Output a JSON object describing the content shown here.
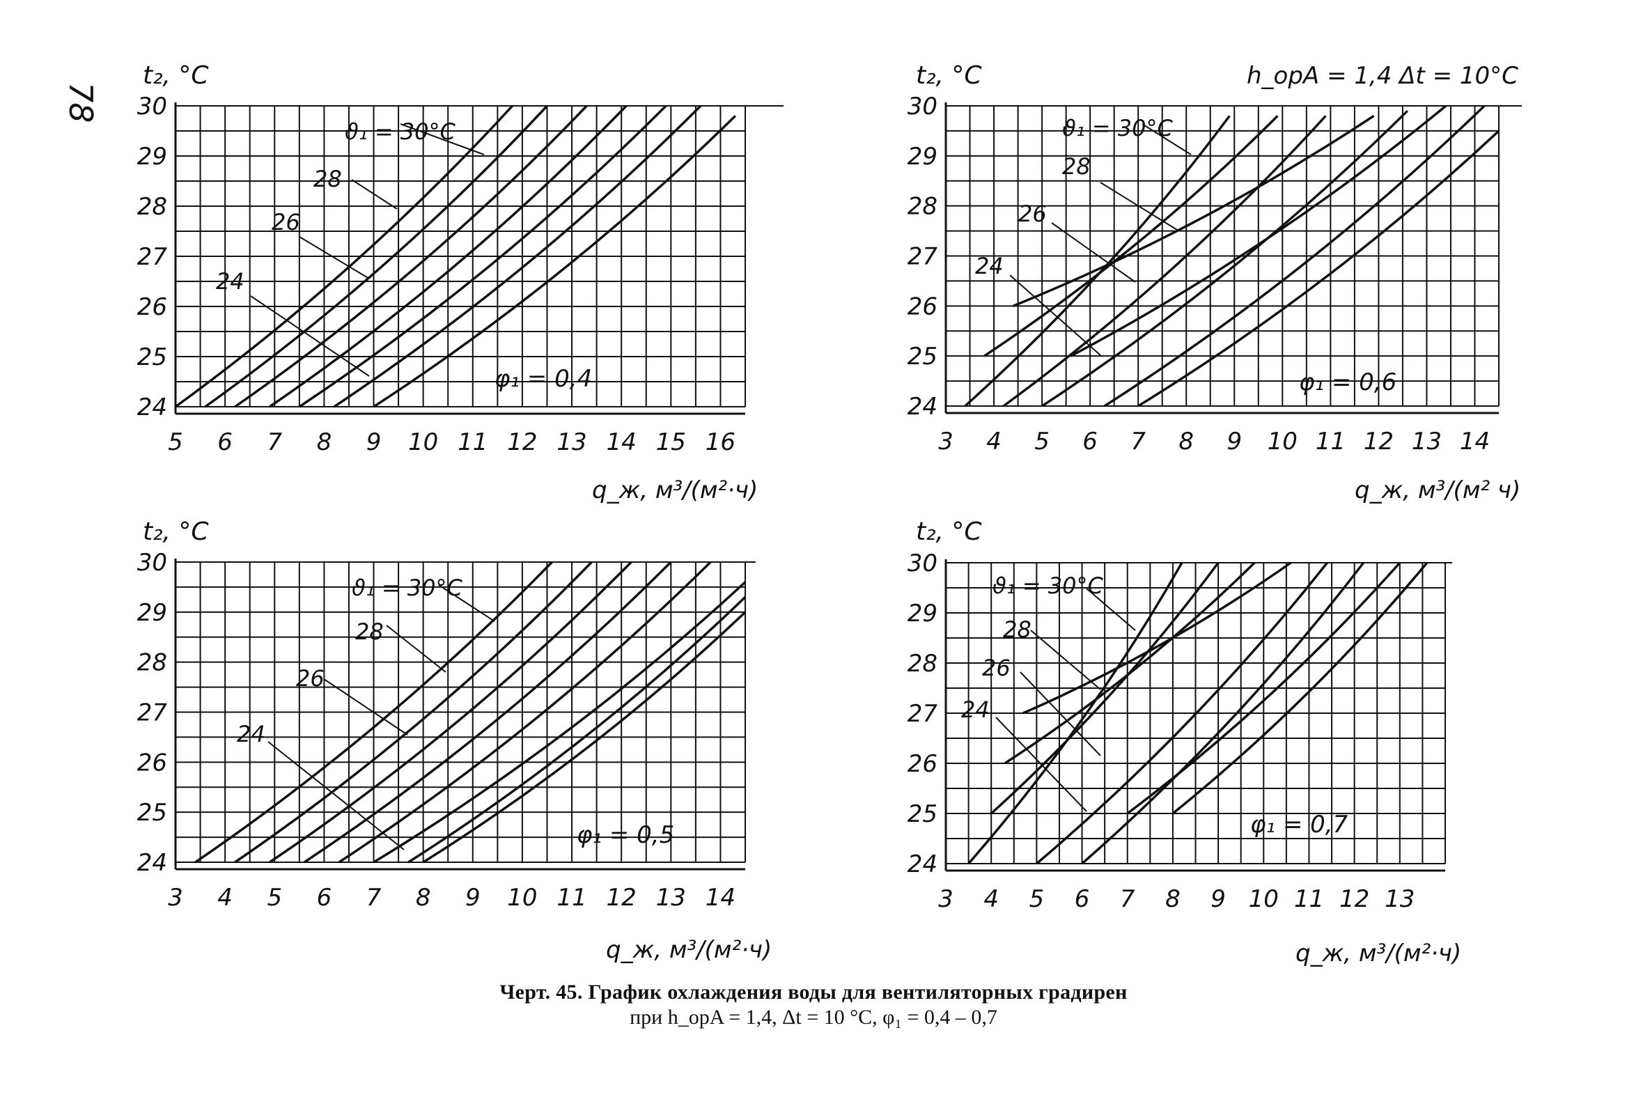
{
  "page_number": "78",
  "top_note": "h_opA = 1,4   Δt = 10°C",
  "caption": {
    "line1": "Черт. 45. График охлаждения воды для вентиляторных градирен",
    "line2": "при h_opA = 1,4, Δt = 10 °C, φ₁ = 0,4 – 0,7"
  },
  "chart_data": [
    {
      "type": "line",
      "ylabel": "t₂, °C",
      "xlabel": "q_ж, м³/(м²·ч)",
      "phi_label": "φ₁ = 0,4",
      "xlim": [
        5,
        16.5
      ],
      "ylim": [
        24,
        30
      ],
      "x_ticks": [
        "5",
        "6",
        "7",
        "8",
        "9",
        "10",
        "11",
        "12",
        "13",
        "14",
        "15",
        "16"
      ],
      "y_ticks": [
        "24",
        "25",
        "26",
        "27",
        "28",
        "29",
        "30"
      ],
      "curve_labels": [
        "ϑ₁ = 30°C",
        "28",
        "26",
        "24"
      ],
      "series": [
        {
          "x": [
            5.0,
            11.8
          ],
          "y": [
            24.0,
            30.0
          ]
        },
        {
          "x": [
            5.6,
            12.5
          ],
          "y": [
            24.0,
            30.0
          ]
        },
        {
          "x": [
            6.2,
            13.3
          ],
          "y": [
            24.0,
            30.0
          ]
        },
        {
          "x": [
            6.9,
            14.1
          ],
          "y": [
            24.0,
            30.0
          ]
        },
        {
          "x": [
            7.5,
            14.9
          ],
          "y": [
            24.0,
            30.0
          ]
        },
        {
          "x": [
            8.2,
            15.6
          ],
          "y": [
            24.0,
            30.0
          ]
        },
        {
          "x": [
            9.0,
            16.3
          ],
          "y": [
            24.0,
            29.8
          ]
        }
      ]
    },
    {
      "type": "line",
      "ylabel": "t₂, °C",
      "xlabel": "q_ж, м³/(м² ч)",
      "phi_label": "φ₁ = 0,6",
      "xlim": [
        3,
        14.5
      ],
      "ylim": [
        24,
        30
      ],
      "x_ticks": [
        "3",
        "4",
        "5",
        "6",
        "7",
        "8",
        "9",
        "10",
        "11",
        "12",
        "13",
        "14"
      ],
      "y_ticks": [
        "24",
        "25",
        "26",
        "27",
        "28",
        "29",
        "30"
      ],
      "curve_labels": [
        "ϑ₁ = 30°C",
        "28",
        "26",
        "24"
      ],
      "series": [
        {
          "x": [
            3.4,
            8.9
          ],
          "y": [
            24.0,
            29.8
          ]
        },
        {
          "x": [
            3.8,
            9.9
          ],
          "y": [
            25.0,
            29.8
          ]
        },
        {
          "x": [
            4.2,
            10.9
          ],
          "y": [
            24.0,
            29.8
          ]
        },
        {
          "x": [
            4.4,
            11.9
          ],
          "y": [
            26.0,
            29.8
          ]
        },
        {
          "x": [
            5.0,
            12.6
          ],
          "y": [
            24.0,
            29.9
          ]
        },
        {
          "x": [
            5.6,
            13.4
          ],
          "y": [
            25.0,
            30.0
          ]
        },
        {
          "x": [
            6.3,
            14.2
          ],
          "y": [
            24.0,
            30.0
          ]
        },
        {
          "x": [
            7.0,
            14.5
          ],
          "y": [
            24.0,
            29.5
          ]
        }
      ]
    },
    {
      "type": "line",
      "ylabel": "t₂, °C",
      "xlabel": "q_ж, м³/(м²·ч)",
      "phi_label": "φ₁ = 0,5",
      "xlim": [
        3,
        14.5
      ],
      "ylim": [
        24,
        30
      ],
      "x_ticks": [
        "3",
        "4",
        "5",
        "6",
        "7",
        "8",
        "9",
        "10",
        "11",
        "12",
        "13",
        "14"
      ],
      "y_ticks": [
        "24",
        "25",
        "26",
        "27",
        "28",
        "29",
        "30"
      ],
      "curve_labels": [
        "ϑ₁ = 30°C",
        "28",
        "26",
        "24"
      ],
      "series": [
        {
          "x": [
            3.4,
            10.6
          ],
          "y": [
            24.0,
            30.0
          ]
        },
        {
          "x": [
            4.2,
            11.4
          ],
          "y": [
            24.0,
            30.0
          ]
        },
        {
          "x": [
            4.9,
            12.2
          ],
          "y": [
            24.0,
            30.0
          ]
        },
        {
          "x": [
            5.6,
            13.0
          ],
          "y": [
            24.0,
            30.0
          ]
        },
        {
          "x": [
            6.3,
            13.8
          ],
          "y": [
            24.0,
            30.0
          ]
        },
        {
          "x": [
            7.0,
            14.5
          ],
          "y": [
            24.0,
            29.6
          ]
        },
        {
          "x": [
            7.7,
            14.5
          ],
          "y": [
            24.0,
            29.3
          ]
        },
        {
          "x": [
            8.0,
            14.5
          ],
          "y": [
            24.0,
            29.0
          ]
        }
      ]
    },
    {
      "type": "line",
      "ylabel": "t₂, °C",
      "xlabel": "q_ж, м³/(м²·ч)",
      "phi_label": "φ₁ = 0,7",
      "xlim": [
        3,
        14
      ],
      "ylim": [
        24,
        30
      ],
      "x_ticks": [
        "3",
        "4",
        "5",
        "6",
        "7",
        "8",
        "9",
        "10",
        "11",
        "12",
        "13"
      ],
      "y_ticks": [
        "24",
        "25",
        "26",
        "27",
        "28",
        "29",
        "30"
      ],
      "curve_labels": [
        "ϑ₁ = 30°C",
        "28",
        "26",
        "24"
      ],
      "series": [
        {
          "x": [
            3.5,
            8.2
          ],
          "y": [
            24.0,
            30.0
          ]
        },
        {
          "x": [
            4.0,
            9.0
          ],
          "y": [
            25.0,
            30.0
          ]
        },
        {
          "x": [
            4.3,
            9.8
          ],
          "y": [
            26.0,
            30.0
          ]
        },
        {
          "x": [
            4.7,
            10.6
          ],
          "y": [
            27.0,
            30.0
          ]
        },
        {
          "x": [
            5.0,
            11.4
          ],
          "y": [
            24.0,
            30.0
          ]
        },
        {
          "x": [
            6.0,
            12.2
          ],
          "y": [
            24.0,
            30.0
          ]
        },
        {
          "x": [
            7.0,
            13.0
          ],
          "y": [
            25.0,
            30.0
          ]
        },
        {
          "x": [
            8.0,
            13.6
          ],
          "y": [
            25.0,
            30.0
          ]
        }
      ]
    }
  ]
}
